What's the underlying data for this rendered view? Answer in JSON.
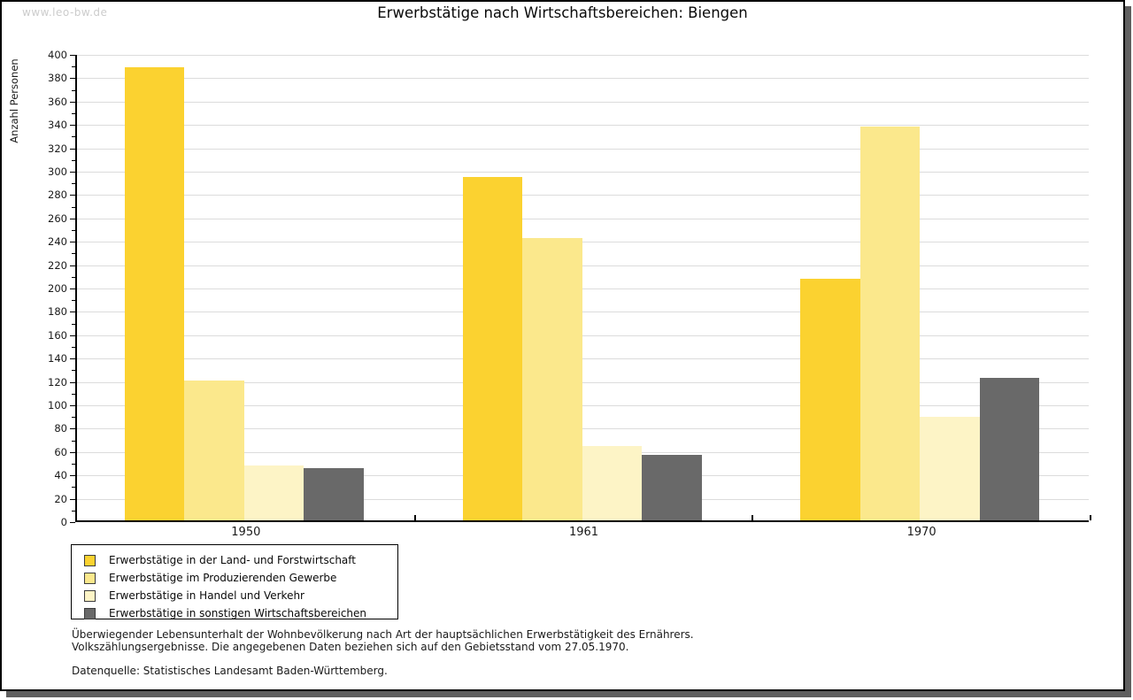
{
  "watermark": "www.leo-bw.de",
  "title": "Erwerbstätige nach Wirtschaftsbereichen: Biengen",
  "chart_data": {
    "type": "bar",
    "title": "Erwerbstätige nach Wirtschaftsbereichen: Biengen",
    "xlabel": "",
    "ylabel": "Anzahl Personen",
    "ylim": [
      0,
      400
    ],
    "ytick_step": 20,
    "ytick_minor_step": 10,
    "grid": true,
    "legend_position": "bottom-left",
    "categories": [
      "1950",
      "1961",
      "1970"
    ],
    "series": [
      {
        "name": "Erwerbstätige in der Land- und Forstwirtschaft",
        "color": "#fbd230",
        "values": [
          388,
          294,
          207
        ]
      },
      {
        "name": "Erwerbstätige im Produzierenden Gewerbe",
        "color": "#fbe88c",
        "values": [
          120,
          242,
          337
        ]
      },
      {
        "name": "Erwerbstätige in Handel und Verkehr",
        "color": "#fdf4c6",
        "values": [
          47,
          64,
          89
        ]
      },
      {
        "name": "Erwerbstätige in sonstigen Wirtschaftsbereichen",
        "color": "#696969",
        "values": [
          45,
          56,
          122
        ]
      }
    ]
  },
  "footer": {
    "line1": "Überwiegender Lebensunterhalt der Wohnbevölkerung nach Art der hauptsächlichen Erwerbstätigkeit des Ernährers.",
    "line2": "Volkszählungsergebnisse. Die angegebenen Daten beziehen sich auf den Gebietsstand vom 27.05.1970.",
    "source": "Datenquelle: Statistisches Landesamt Baden-Württemberg."
  },
  "colors": {
    "grid": "#dcdcdc",
    "axis": "#000000",
    "shadow": "#5f5f5f",
    "watermark": "#cccccc"
  }
}
